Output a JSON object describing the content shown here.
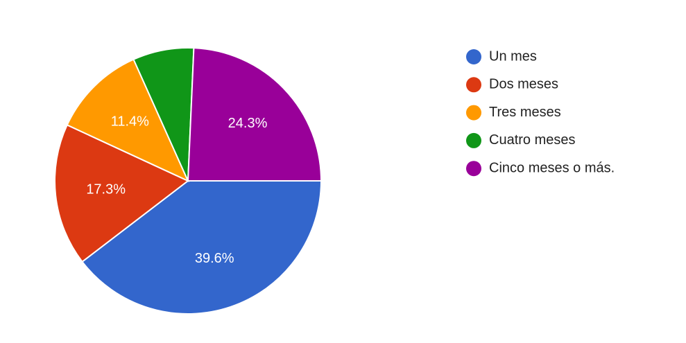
{
  "chart_data": {
    "type": "pie",
    "categories": [
      "Un mes",
      "Dos meses",
      "Tres meses",
      "Cuatro meses",
      "Cinco meses o más."
    ],
    "values": [
      39.6,
      17.3,
      11.4,
      7.4,
      24.3
    ],
    "value_labels": [
      "39.6%",
      "17.3%",
      "11.4%",
      null,
      "24.3%"
    ],
    "colors": [
      "#3366cc",
      "#dc3912",
      "#ff9900",
      "#109618",
      "#990099"
    ],
    "legend": "right"
  }
}
